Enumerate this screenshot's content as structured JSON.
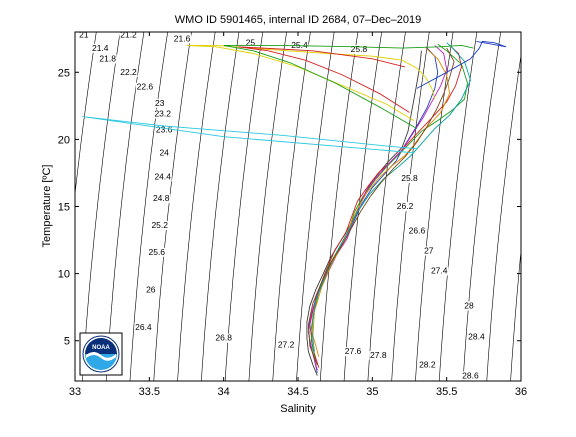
{
  "chart_data": {
    "type": "line",
    "title": "WMO ID 5901465, internal ID 2684, 07–Dec–2019",
    "xlabel": "Salinity",
    "ylabel": "Temperature [ºC]",
    "xlim": [
      33,
      36
    ],
    "ylim": [
      2,
      28
    ],
    "xticks": [
      "33",
      "33.5",
      "34",
      "34.5",
      "35",
      "35.5",
      "36"
    ],
    "yticks": [
      "5",
      "10",
      "15",
      "20",
      "25"
    ],
    "grid": false,
    "legend": "none",
    "density_contours": {
      "labels": [
        {
          "text": "21",
          "s": 33.06,
          "t": 27.6
        },
        {
          "text": "21.2",
          "s": 33.36,
          "t": 27.6
        },
        {
          "text": "21.6",
          "s": 33.72,
          "t": 27.3
        },
        {
          "text": "21.4",
          "s": 33.17,
          "t": 26.6
        },
        {
          "text": "21.8",
          "s": 33.22,
          "t": 25.8
        },
        {
          "text": "22.2",
          "s": 33.36,
          "t": 24.8
        },
        {
          "text": "22.6",
          "s": 33.47,
          "t": 23.7
        },
        {
          "text": "23",
          "s": 33.57,
          "t": 22.5
        },
        {
          "text": "23.2",
          "s": 33.59,
          "t": 21.7
        },
        {
          "text": "23.6",
          "s": 33.6,
          "t": 20.5
        },
        {
          "text": "24",
          "s": 33.6,
          "t": 18.8
        },
        {
          "text": "24.4",
          "s": 33.59,
          "t": 17.0
        },
        {
          "text": "24.8",
          "s": 33.58,
          "t": 15.4
        },
        {
          "text": "25.2",
          "s": 33.57,
          "t": 13.4
        },
        {
          "text": "25.6",
          "s": 33.55,
          "t": 11.4
        },
        {
          "text": "26",
          "s": 33.51,
          "t": 8.6
        },
        {
          "text": "26.4",
          "s": 33.46,
          "t": 5.8
        },
        {
          "text": "26.8",
          "s": 34.0,
          "t": 5.0
        },
        {
          "text": "27.2",
          "s": 34.42,
          "t": 4.5
        },
        {
          "text": "27.6",
          "s": 34.87,
          "t": 4.0
        },
        {
          "text": "27.8",
          "s": 35.04,
          "t": 3.7
        },
        {
          "text": "28.2",
          "s": 35.37,
          "t": 3.0
        },
        {
          "text": "28.6",
          "s": 35.66,
          "t": 2.2
        },
        {
          "text": "28.4",
          "s": 35.7,
          "t": 5.1
        },
        {
          "text": "28",
          "s": 35.65,
          "t": 7.4
        },
        {
          "text": "27.4",
          "s": 35.45,
          "t": 10.0
        },
        {
          "text": "27",
          "s": 35.38,
          "t": 11.5
        },
        {
          "text": "26.6",
          "s": 35.3,
          "t": 13.0
        },
        {
          "text": "26.2",
          "s": 35.22,
          "t": 14.8
        },
        {
          "text": "25.8",
          "s": 35.25,
          "t": 16.9
        },
        {
          "text": "25",
          "s": 34.18,
          "t": 27.0
        },
        {
          "text": "25.4",
          "s": 34.51,
          "t": 26.8
        },
        {
          "text": "25.8",
          "s": 34.91,
          "t": 26.5
        }
      ]
    },
    "profile_lines": [
      {
        "color": "#3a3a3a",
        "points": [
          [
            34.63,
            2.4
          ],
          [
            34.6,
            3.2
          ],
          [
            34.57,
            4.2
          ],
          [
            34.56,
            5.2
          ],
          [
            34.56,
            6.4
          ],
          [
            34.58,
            7.6
          ],
          [
            34.62,
            8.8
          ],
          [
            34.67,
            10.0
          ],
          [
            34.72,
            11.2
          ],
          [
            34.78,
            12.3
          ],
          [
            34.84,
            13.4
          ],
          [
            34.89,
            14.4
          ],
          [
            34.93,
            15.5
          ],
          [
            34.98,
            16.6
          ],
          [
            35.05,
            17.6
          ],
          [
            35.12,
            18.5
          ],
          [
            35.2,
            19.4
          ],
          [
            35.24,
            20.6
          ],
          [
            35.26,
            21.8
          ],
          [
            35.28,
            23.0
          ],
          [
            35.3,
            24.2
          ],
          [
            35.32,
            25.5
          ],
          [
            35.33,
            26.6
          ]
        ]
      },
      {
        "color": "#1f3fbf",
        "points": [
          [
            34.63,
            2.6
          ],
          [
            34.61,
            3.6
          ],
          [
            34.58,
            4.8
          ],
          [
            34.57,
            6.0
          ],
          [
            34.6,
            7.4
          ],
          [
            34.64,
            8.8
          ],
          [
            34.7,
            10.2
          ],
          [
            34.76,
            11.5
          ],
          [
            34.83,
            12.8
          ],
          [
            34.88,
            14.0
          ],
          [
            34.93,
            15.2
          ],
          [
            35.0,
            16.4
          ],
          [
            35.08,
            17.4
          ],
          [
            35.16,
            18.4
          ],
          [
            35.22,
            19.6
          ],
          [
            35.3,
            21.0
          ],
          [
            35.37,
            22.4
          ],
          [
            35.42,
            23.8
          ],
          [
            35.44,
            25.0
          ],
          [
            35.42,
            26.2
          ],
          [
            35.36,
            26.9
          ]
        ]
      },
      {
        "color": "#d62020",
        "points": [
          [
            34.64,
            3.0
          ],
          [
            34.6,
            4.4
          ],
          [
            34.58,
            6.2
          ],
          [
            34.62,
            8.2
          ],
          [
            34.68,
            10.0
          ],
          [
            34.75,
            11.8
          ],
          [
            34.82,
            13.0
          ],
          [
            34.86,
            14.2
          ],
          [
            34.9,
            15.4
          ],
          [
            34.97,
            16.5
          ],
          [
            35.04,
            17.5
          ],
          [
            35.12,
            18.3
          ],
          [
            35.18,
            19.0
          ],
          [
            35.28,
            20.2
          ],
          [
            35.4,
            21.6
          ],
          [
            35.5,
            22.8
          ],
          [
            35.56,
            24.0
          ],
          [
            35.6,
            25.4
          ],
          [
            35.58,
            26.4
          ],
          [
            35.52,
            27.0
          ]
        ]
      },
      {
        "color": "#1a9e1a",
        "points": [
          [
            34.62,
            3.4
          ],
          [
            34.59,
            5.0
          ],
          [
            34.6,
            6.8
          ],
          [
            34.64,
            8.6
          ],
          [
            34.7,
            10.4
          ],
          [
            34.78,
            12.0
          ],
          [
            34.84,
            13.2
          ],
          [
            34.88,
            14.6
          ],
          [
            34.94,
            15.8
          ],
          [
            35.02,
            17.0
          ],
          [
            35.1,
            18.0
          ],
          [
            35.18,
            18.9
          ],
          [
            35.26,
            19.8
          ],
          [
            35.33,
            20.6
          ],
          [
            35.44,
            21.4
          ],
          [
            35.54,
            22.2
          ],
          [
            35.62,
            23.0
          ],
          [
            35.64,
            24.2
          ],
          [
            35.6,
            25.6
          ],
          [
            35.5,
            26.6
          ],
          [
            35.44,
            27.1
          ]
        ]
      },
      {
        "color": "#c020c0",
        "points": [
          [
            34.63,
            2.8
          ],
          [
            34.6,
            4.0
          ],
          [
            34.57,
            5.6
          ],
          [
            34.59,
            7.0
          ],
          [
            34.63,
            8.4
          ],
          [
            34.69,
            9.8
          ],
          [
            34.76,
            11.4
          ],
          [
            34.83,
            12.6
          ],
          [
            34.87,
            13.8
          ],
          [
            34.91,
            15.0
          ],
          [
            34.96,
            16.2
          ],
          [
            35.03,
            17.2
          ],
          [
            35.11,
            18.2
          ],
          [
            35.2,
            19.2
          ],
          [
            35.27,
            20.4
          ],
          [
            35.34,
            21.6
          ],
          [
            35.4,
            22.8
          ],
          [
            35.46,
            24.0
          ],
          [
            35.5,
            25.2
          ],
          [
            35.48,
            26.4
          ],
          [
            35.42,
            27.0
          ]
        ]
      },
      {
        "color": "#e08a00",
        "points": [
          [
            34.64,
            3.8
          ],
          [
            34.6,
            5.4
          ],
          [
            34.61,
            7.2
          ],
          [
            34.66,
            9.0
          ],
          [
            34.73,
            10.8
          ],
          [
            34.8,
            12.2
          ],
          [
            34.85,
            13.6
          ],
          [
            34.9,
            14.8
          ],
          [
            34.96,
            16.0
          ],
          [
            35.05,
            17.2
          ],
          [
            35.14,
            18.1
          ],
          [
            35.22,
            18.8
          ],
          [
            35.28,
            19.6
          ],
          [
            35.36,
            20.8
          ],
          [
            35.46,
            22.0
          ],
          [
            35.52,
            23.4
          ],
          [
            35.5,
            24.8
          ],
          [
            35.44,
            26.0
          ],
          [
            35.36,
            26.8
          ]
        ]
      },
      {
        "color": "#00a0a0",
        "points": [
          [
            34.61,
            4.2
          ],
          [
            34.59,
            6.0
          ],
          [
            34.62,
            8.0
          ],
          [
            34.69,
            10.0
          ],
          [
            34.77,
            11.8
          ],
          [
            34.84,
            13.2
          ],
          [
            34.9,
            14.6
          ],
          [
            34.98,
            15.9
          ],
          [
            35.08,
            17.1
          ],
          [
            35.18,
            18.0
          ],
          [
            35.26,
            18.8
          ],
          [
            35.34,
            19.8
          ],
          [
            35.42,
            20.8
          ],
          [
            35.52,
            21.8
          ],
          [
            35.6,
            23.0
          ],
          [
            35.66,
            24.4
          ],
          [
            35.62,
            25.8
          ],
          [
            35.54,
            26.8
          ],
          [
            35.5,
            27.2
          ]
        ]
      },
      {
        "color": "#7a4a1a",
        "points": [
          [
            34.63,
            3.2
          ],
          [
            34.58,
            4.6
          ],
          [
            34.57,
            6.2
          ],
          [
            34.6,
            7.8
          ],
          [
            34.66,
            9.4
          ],
          [
            34.72,
            10.8
          ],
          [
            34.8,
            12.2
          ],
          [
            34.86,
            13.4
          ],
          [
            34.92,
            14.6
          ],
          [
            34.99,
            15.8
          ],
          [
            35.06,
            16.8
          ],
          [
            35.14,
            17.8
          ],
          [
            35.22,
            18.7
          ],
          [
            35.3,
            19.8
          ],
          [
            35.37,
            21.0
          ],
          [
            35.43,
            22.2
          ],
          [
            35.48,
            23.4
          ],
          [
            35.52,
            24.6
          ],
          [
            35.55,
            25.8
          ],
          [
            35.5,
            26.8
          ]
        ]
      },
      {
        "color": "#e0d000",
        "points": [
          [
            35.28,
            21.4
          ],
          [
            35.1,
            22.6
          ],
          [
            34.8,
            24.0
          ],
          [
            34.5,
            25.4
          ],
          [
            34.2,
            26.4
          ],
          [
            33.95,
            26.9
          ],
          [
            33.75,
            27.0
          ],
          [
            33.95,
            27.0
          ],
          [
            34.3,
            26.7
          ],
          [
            34.7,
            26.4
          ],
          [
            35.0,
            26.2
          ],
          [
            35.2,
            25.9
          ],
          [
            35.3,
            25.3
          ],
          [
            35.36,
            24.6
          ],
          [
            35.4,
            23.8
          ],
          [
            35.42,
            23.0
          ]
        ]
      },
      {
        "color": "#1a9e1a",
        "points": [
          [
            35.3,
            20.8
          ],
          [
            35.05,
            22.4
          ],
          [
            34.75,
            24.2
          ],
          [
            34.45,
            25.7
          ],
          [
            34.2,
            26.6
          ],
          [
            34.0,
            27.0
          ],
          [
            34.4,
            27.0
          ],
          [
            34.9,
            26.9
          ],
          [
            35.2,
            26.8
          ],
          [
            35.45,
            26.9
          ],
          [
            35.6,
            27.0
          ],
          [
            35.68,
            26.8
          ]
        ]
      },
      {
        "color": "#d62020",
        "points": [
          [
            35.25,
            22.0
          ],
          [
            35.05,
            23.4
          ],
          [
            34.8,
            24.8
          ],
          [
            34.55,
            25.9
          ],
          [
            34.3,
            26.6
          ],
          [
            34.1,
            26.9
          ],
          [
            34.6,
            26.6
          ],
          [
            35.0,
            26.0
          ],
          [
            35.22,
            25.4
          ]
        ]
      },
      {
        "color": "#2bc8e0",
        "points": [
          [
            35.28,
            19.0
          ],
          [
            34.0,
            20.2
          ],
          [
            33.05,
            21.7
          ],
          [
            33.6,
            21.0
          ],
          [
            34.4,
            20.3
          ],
          [
            35.1,
            19.5
          ],
          [
            35.3,
            19.3
          ]
        ]
      },
      {
        "color": "#1f3fbf",
        "points": [
          [
            35.3,
            23.8
          ],
          [
            35.5,
            25.0
          ],
          [
            35.66,
            26.0
          ],
          [
            35.72,
            26.8
          ],
          [
            35.74,
            27.3
          ],
          [
            35.82,
            27.2
          ],
          [
            35.9,
            26.9
          ],
          [
            35.8,
            27.1
          ],
          [
            35.7,
            27.3
          ]
        ]
      }
    ]
  },
  "logo": {
    "text": "NOAA",
    "colors": {
      "outer": "#ffffff",
      "top": "#0a2f7a",
      "bottom": "#2fa8e8",
      "bird": "#ffffff",
      "frame": "#000000"
    }
  },
  "colors": {
    "axes": "#000000",
    "contour": "#000000",
    "background": "#ffffff"
  }
}
